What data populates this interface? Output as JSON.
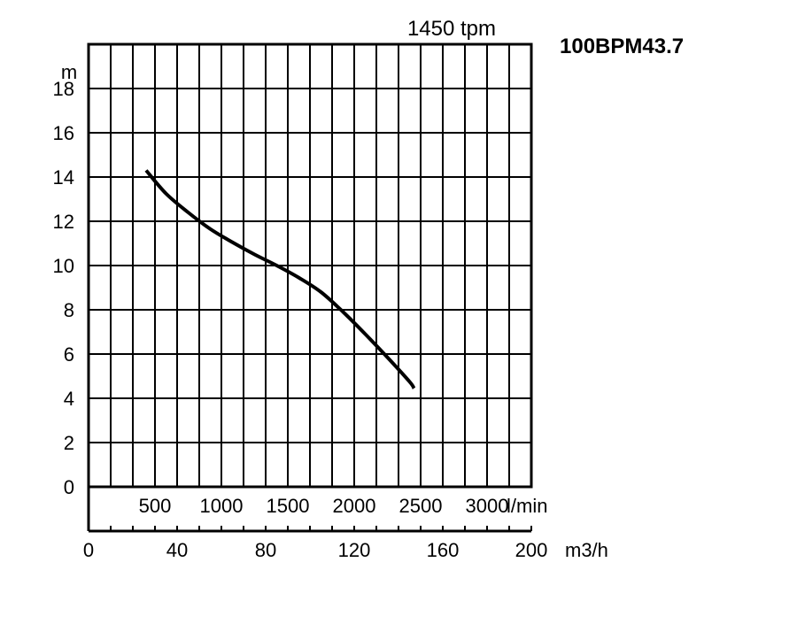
{
  "chart_data": {
    "type": "line",
    "model_label": "100BPM43.7",
    "speed_label": "1450 tpm",
    "ylabel": "m",
    "xlabel": "m3/h",
    "lmin_unit": "l/min",
    "ylim": [
      0,
      20
    ],
    "xlim": [
      0,
      200
    ],
    "y_ticks": [
      0,
      2,
      4,
      6,
      8,
      10,
      12,
      14,
      16,
      18
    ],
    "x_ticks_m3h": [
      0,
      40,
      80,
      120,
      160,
      200
    ],
    "x_ticks_lmin": [
      "500",
      "1000",
      "1500",
      "2000",
      "2500",
      "3000"
    ],
    "grid": true,
    "series": [
      {
        "x": [
          26,
          35,
          45,
          55,
          65,
          75,
          85,
          95,
          105,
          115,
          125,
          135,
          145,
          147
        ],
        "y": [
          14.3,
          13.25,
          12.4,
          11.65,
          11.05,
          10.5,
          10.0,
          9.45,
          8.8,
          7.9,
          6.9,
          5.85,
          4.75,
          4.45
        ]
      }
    ]
  }
}
